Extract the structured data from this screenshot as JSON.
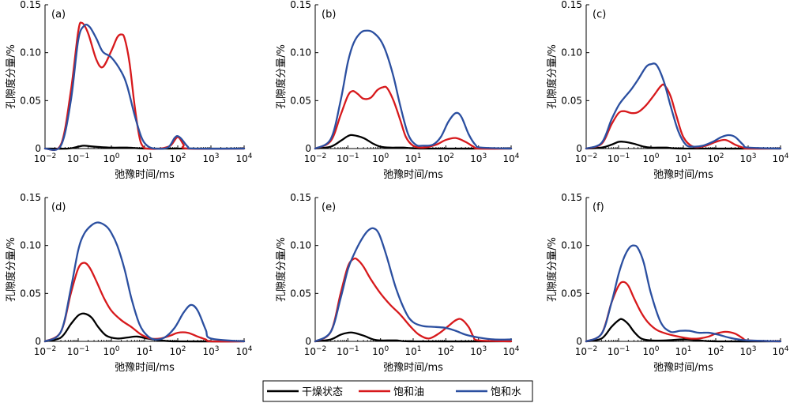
{
  "legend": {
    "items": [
      {
        "label": "干燥状态",
        "color": "#000000"
      },
      {
        "label": "饱和油",
        "color": "#d7191c"
      },
      {
        "label": "饱和水",
        "color": "#2b4fa0"
      }
    ]
  },
  "chart_data": [
    {
      "type": "line",
      "panel_label": "(a)",
      "xlabel": "弛豫时间/ms",
      "ylabel": "孔隙度分量/%",
      "xscale": "log",
      "xlim": [
        0.01,
        10000
      ],
      "ylim": [
        0,
        0.15
      ],
      "yticks": [
        "0",
        "0.05",
        "0.10",
        "0.15"
      ],
      "xtick_exponents": [
        "-2",
        "-1",
        "0",
        "1",
        "2",
        "3",
        "4"
      ],
      "series": [
        {
          "name": "干燥状态",
          "color": "#000000",
          "x": [
            0.01,
            0.05,
            0.1,
            0.15,
            0.3,
            1,
            3,
            10,
            100,
            10000
          ],
          "y": [
            0,
            0,
            0.002,
            0.003,
            0.002,
            0.001,
            0.001,
            0,
            0,
            0
          ]
        },
        {
          "name": "饱和油",
          "color": "#d7191c",
          "x": [
            0.01,
            0.03,
            0.06,
            0.1,
            0.13,
            0.2,
            0.35,
            0.55,
            1,
            1.5,
            2,
            2.5,
            3.5,
            5,
            7,
            9,
            12,
            30,
            60,
            100,
            150,
            200,
            10000
          ],
          "y": [
            0,
            0.004,
            0.06,
            0.122,
            0.131,
            0.12,
            0.093,
            0.085,
            0.102,
            0.116,
            0.119,
            0.115,
            0.09,
            0.045,
            0.012,
            0.002,
            0,
            0,
            0.003,
            0.012,
            0.004,
            0,
            0
          ]
        },
        {
          "name": "饱和水",
          "color": "#2b4fa0",
          "x": [
            0.01,
            0.03,
            0.06,
            0.1,
            0.15,
            0.22,
            0.35,
            0.55,
            1,
            2,
            3,
            5,
            8,
            12,
            20,
            50,
            80,
            100,
            130,
            200,
            300,
            10000
          ],
          "y": [
            0,
            0.003,
            0.05,
            0.113,
            0.128,
            0.127,
            0.115,
            0.101,
            0.095,
            0.08,
            0.065,
            0.035,
            0.012,
            0.003,
            0,
            0.001,
            0.011,
            0.013,
            0.01,
            0.002,
            0,
            0
          ]
        }
      ]
    },
    {
      "type": "line",
      "panel_label": "(b)",
      "xlabel": "弛豫时间/ms",
      "ylabel": "孔隙度分量/%",
      "xscale": "log",
      "xlim": [
        0.01,
        10000
      ],
      "ylim": [
        0,
        0.15
      ],
      "yticks": [
        "0",
        "0.05",
        "0.10",
        "0.15"
      ],
      "xtick_exponents": [
        "-2",
        "-1",
        "0",
        "1",
        "2",
        "3",
        "4"
      ],
      "series": [
        {
          "name": "干燥状态",
          "color": "#000000",
          "x": [
            0.01,
            0.03,
            0.06,
            0.1,
            0.14,
            0.3,
            0.6,
            1,
            2,
            5,
            20,
            10000
          ],
          "y": [
            0,
            0.002,
            0.008,
            0.013,
            0.014,
            0.011,
            0.005,
            0.002,
            0.001,
            0.001,
            0,
            0
          ]
        },
        {
          "name": "饱和油",
          "color": "#d7191c",
          "x": [
            0.01,
            0.03,
            0.06,
            0.1,
            0.14,
            0.2,
            0.3,
            0.5,
            0.8,
            1.2,
            1.6,
            2.5,
            4,
            6,
            10,
            20,
            50,
            100,
            200,
            400,
            700,
            1000,
            10000
          ],
          "y": [
            0,
            0.008,
            0.035,
            0.055,
            0.06,
            0.057,
            0.052,
            0.053,
            0.061,
            0.064,
            0.063,
            0.05,
            0.03,
            0.012,
            0.003,
            0.001,
            0.004,
            0.009,
            0.011,
            0.007,
            0.002,
            0,
            0
          ]
        },
        {
          "name": "饱和水",
          "color": "#2b4fa0",
          "x": [
            0.01,
            0.03,
            0.06,
            0.1,
            0.15,
            0.25,
            0.4,
            0.6,
            1,
            1.5,
            2.5,
            4,
            7,
            12,
            20,
            40,
            70,
            120,
            200,
            300,
            500,
            800,
            1200,
            10000
          ],
          "y": [
            0,
            0.01,
            0.05,
            0.09,
            0.11,
            0.121,
            0.123,
            0.121,
            0.113,
            0.1,
            0.075,
            0.045,
            0.015,
            0.004,
            0.003,
            0.004,
            0.012,
            0.028,
            0.037,
            0.033,
            0.015,
            0.004,
            0.001,
            0
          ]
        }
      ]
    },
    {
      "type": "line",
      "panel_label": "(c)",
      "xlabel": "弛豫时间/ms",
      "ylabel": "孔隙度分量/%",
      "xscale": "log",
      "xlim": [
        0.01,
        10000
      ],
      "ylim": [
        0,
        0.15
      ],
      "yticks": [
        "0",
        "0.05",
        "0.10",
        "0.15"
      ],
      "xtick_exponents": [
        "-2",
        "-1",
        "0",
        "1",
        "2",
        "3",
        "4"
      ],
      "series": [
        {
          "name": "干燥状态",
          "color": "#000000",
          "x": [
            0.01,
            0.03,
            0.06,
            0.1,
            0.15,
            0.3,
            0.6,
            1,
            3,
            10,
            10000
          ],
          "y": [
            0,
            0.001,
            0.004,
            0.007,
            0.007,
            0.005,
            0.002,
            0.001,
            0.001,
            0,
            0
          ]
        },
        {
          "name": "饱和油",
          "color": "#d7191c",
          "x": [
            0.01,
            0.03,
            0.06,
            0.1,
            0.15,
            0.25,
            0.4,
            0.7,
            1.2,
            2,
            2.6,
            4,
            6,
            10,
            20,
            50,
            100,
            200,
            400,
            700,
            1000,
            10000
          ],
          "y": [
            0,
            0.005,
            0.025,
            0.037,
            0.039,
            0.037,
            0.038,
            0.045,
            0.055,
            0.065,
            0.066,
            0.055,
            0.035,
            0.012,
            0.002,
            0.003,
            0.007,
            0.009,
            0.004,
            0.001,
            0,
            0
          ]
        },
        {
          "name": "饱和水",
          "color": "#2b4fa0",
          "x": [
            0.01,
            0.03,
            0.06,
            0.1,
            0.15,
            0.25,
            0.4,
            0.7,
            1,
            1.5,
            2.5,
            4,
            7,
            12,
            20,
            40,
            80,
            150,
            250,
            400,
            700,
            1000,
            10000
          ],
          "y": [
            0,
            0.006,
            0.03,
            0.045,
            0.053,
            0.062,
            0.072,
            0.085,
            0.088,
            0.087,
            0.07,
            0.045,
            0.018,
            0.004,
            0.002,
            0.003,
            0.007,
            0.012,
            0.014,
            0.012,
            0.004,
            0.001,
            0
          ]
        }
      ]
    },
    {
      "type": "line",
      "panel_label": "(d)",
      "xlabel": "弛豫时间/ms",
      "ylabel": "孔隙度分量/%",
      "xscale": "log",
      "xlim": [
        0.01,
        10000
      ],
      "ylim": [
        0,
        0.15
      ],
      "yticks": [
        "0",
        "0.05",
        "0.10",
        "0.15"
      ],
      "xtick_exponents": [
        "-2",
        "-1",
        "0",
        "1",
        "2",
        "3",
        "4"
      ],
      "series": [
        {
          "name": "干燥状态",
          "color": "#000000",
          "x": [
            0.01,
            0.03,
            0.06,
            0.1,
            0.15,
            0.25,
            0.4,
            0.7,
            1.5,
            3,
            6,
            12,
            30,
            100,
            10000
          ],
          "y": [
            0,
            0.004,
            0.018,
            0.027,
            0.029,
            0.025,
            0.015,
            0.006,
            0.003,
            0.004,
            0.005,
            0.003,
            0.001,
            0,
            0
          ]
        },
        {
          "name": "饱和油",
          "color": "#d7191c",
          "x": [
            0.01,
            0.03,
            0.06,
            0.1,
            0.15,
            0.22,
            0.35,
            0.6,
            1,
            2,
            4,
            8,
            15,
            30,
            60,
            100,
            200,
            400,
            700,
            1000,
            10000
          ],
          "y": [
            0,
            0.01,
            0.05,
            0.076,
            0.082,
            0.077,
            0.063,
            0.045,
            0.032,
            0.022,
            0.015,
            0.007,
            0.003,
            0.003,
            0.006,
            0.009,
            0.009,
            0.005,
            0.002,
            0,
            0
          ]
        },
        {
          "name": "饱和水",
          "color": "#2b4fa0",
          "x": [
            0.01,
            0.03,
            0.06,
            0.1,
            0.15,
            0.25,
            0.4,
            0.7,
            1,
            1.5,
            2.5,
            4,
            7,
            12,
            20,
            40,
            80,
            150,
            250,
            400,
            700,
            1000,
            10000
          ],
          "y": [
            0,
            0.01,
            0.055,
            0.095,
            0.112,
            0.121,
            0.124,
            0.12,
            0.113,
            0.1,
            0.075,
            0.045,
            0.018,
            0.006,
            0.002,
            0.004,
            0.014,
            0.03,
            0.038,
            0.032,
            0.012,
            0.003,
            0
          ]
        }
      ]
    },
    {
      "type": "line",
      "panel_label": "(e)",
      "xlabel": "弛豫时间/ms",
      "ylabel": "孔隙度分量/%",
      "xscale": "log",
      "xlim": [
        0.01,
        10000
      ],
      "ylim": [
        0,
        0.15
      ],
      "yticks": [
        "0",
        "0.05",
        "0.10",
        "0.15"
      ],
      "xtick_exponents": [
        "-2",
        "-1",
        "0",
        "1",
        "2",
        "3",
        "4"
      ],
      "series": [
        {
          "name": "干燥状态",
          "color": "#000000",
          "x": [
            0.01,
            0.03,
            0.06,
            0.1,
            0.15,
            0.3,
            0.6,
            1,
            3,
            10,
            10000
          ],
          "y": [
            0,
            0.002,
            0.007,
            0.009,
            0.009,
            0.006,
            0.002,
            0.001,
            0.001,
            0,
            0
          ]
        },
        {
          "name": "饱和油",
          "color": "#d7191c",
          "x": [
            0.01,
            0.03,
            0.06,
            0.1,
            0.15,
            0.2,
            0.3,
            0.5,
            1,
            2,
            4,
            8,
            15,
            30,
            60,
            120,
            200,
            300,
            500,
            700,
            1000,
            10000
          ],
          "y": [
            0,
            0.01,
            0.05,
            0.078,
            0.086,
            0.085,
            0.078,
            0.065,
            0.05,
            0.038,
            0.028,
            0.016,
            0.007,
            0.003,
            0.008,
            0.016,
            0.022,
            0.023,
            0.015,
            0.005,
            0.001,
            0
          ]
        },
        {
          "name": "饱和水",
          "color": "#2b4fa0",
          "x": [
            0.01,
            0.03,
            0.06,
            0.1,
            0.15,
            0.25,
            0.4,
            0.6,
            0.9,
            1.5,
            3,
            6,
            10,
            20,
            50,
            100,
            200,
            400,
            1000,
            3000,
            10000
          ],
          "y": [
            0,
            0.01,
            0.045,
            0.075,
            0.09,
            0.105,
            0.115,
            0.118,
            0.112,
            0.09,
            0.055,
            0.03,
            0.02,
            0.016,
            0.015,
            0.014,
            0.011,
            0.007,
            0.004,
            0.002,
            0.002
          ]
        }
      ]
    },
    {
      "type": "line",
      "panel_label": "(f)",
      "xlabel": "弛豫时间/ms",
      "ylabel": "孔隙度分量/%",
      "xscale": "log",
      "xlim": [
        0.01,
        10000
      ],
      "ylim": [
        0,
        0.15
      ],
      "yticks": [
        "0",
        "0.05",
        "0.10",
        "0.15"
      ],
      "xtick_exponents": [
        "-2",
        "-1",
        "0",
        "1",
        "2",
        "3",
        "4"
      ],
      "series": [
        {
          "name": "干燥状态",
          "color": "#000000",
          "x": [
            0.01,
            0.03,
            0.06,
            0.1,
            0.13,
            0.2,
            0.3,
            0.5,
            1,
            3,
            10,
            30,
            100,
            10000
          ],
          "y": [
            0,
            0.003,
            0.015,
            0.022,
            0.023,
            0.018,
            0.01,
            0.003,
            0.001,
            0.001,
            0.002,
            0.001,
            0,
            0
          ]
        },
        {
          "name": "饱和油",
          "color": "#d7191c",
          "x": [
            0.01,
            0.03,
            0.06,
            0.1,
            0.14,
            0.2,
            0.3,
            0.5,
            0.8,
            1.5,
            3,
            7,
            15,
            30,
            60,
            100,
            200,
            400,
            700,
            1000,
            10000
          ],
          "y": [
            0,
            0.008,
            0.04,
            0.058,
            0.062,
            0.058,
            0.045,
            0.03,
            0.02,
            0.012,
            0.008,
            0.005,
            0.003,
            0.003,
            0.005,
            0.008,
            0.01,
            0.008,
            0.003,
            0.001,
            0
          ]
        },
        {
          "name": "饱和水",
          "color": "#2b4fa0",
          "x": [
            0.01,
            0.03,
            0.06,
            0.1,
            0.15,
            0.22,
            0.3,
            0.4,
            0.6,
            1,
            2,
            4,
            8,
            15,
            30,
            60,
            120,
            250,
            500,
            1000,
            10000
          ],
          "y": [
            0,
            0.008,
            0.04,
            0.07,
            0.088,
            0.098,
            0.1,
            0.097,
            0.082,
            0.05,
            0.02,
            0.01,
            0.011,
            0.011,
            0.009,
            0.009,
            0.007,
            0.004,
            0.002,
            0.001,
            0
          ]
        }
      ]
    }
  ]
}
